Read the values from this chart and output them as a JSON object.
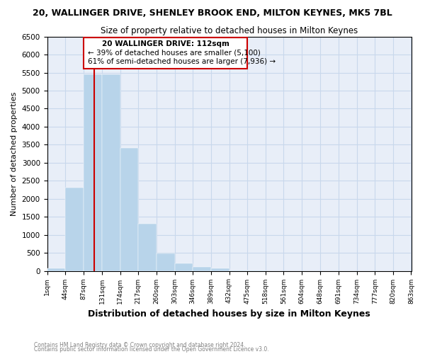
{
  "title": "20, WALLINGER DRIVE, SHENLEY BROOK END, MILTON KEYNES, MK5 7BL",
  "subtitle": "Size of property relative to detached houses in Milton Keynes",
  "xlabel": "Distribution of detached houses by size in Milton Keynes",
  "ylabel": "Number of detached properties",
  "bar_color": "#b8d4ea",
  "bar_edgecolor": "#b8d4ea",
  "grid_color": "#c8d8ec",
  "background_color": "#e8eef8",
  "property_size": 112,
  "property_line_color": "#cc0000",
  "annotation_text_line1": "20 WALLINGER DRIVE: 112sqm",
  "annotation_text_line2": "← 39% of detached houses are smaller (5,100)",
  "annotation_text_line3": "61% of semi-detached houses are larger (7,936) →",
  "annotation_box_color": "#cc0000",
  "bin_edges": [
    1,
    44,
    87,
    131,
    174,
    217,
    260,
    303,
    346,
    389,
    432,
    475,
    518,
    561,
    604,
    648,
    691,
    734,
    777,
    820,
    863
  ],
  "bar_heights": [
    75,
    2300,
    5450,
    5450,
    3400,
    1300,
    480,
    200,
    100,
    75,
    20,
    10,
    0,
    0,
    0,
    0,
    0,
    0,
    0,
    0
  ],
  "ylim": [
    0,
    6500
  ],
  "yticks": [
    0,
    500,
    1000,
    1500,
    2000,
    2500,
    3000,
    3500,
    4000,
    4500,
    5000,
    5500,
    6000,
    6500
  ],
  "footnote1": "Contains HM Land Registry data © Crown copyright and database right 2024.",
  "footnote2": "Contains public sector information licensed under the Open Government Licence v3.0."
}
